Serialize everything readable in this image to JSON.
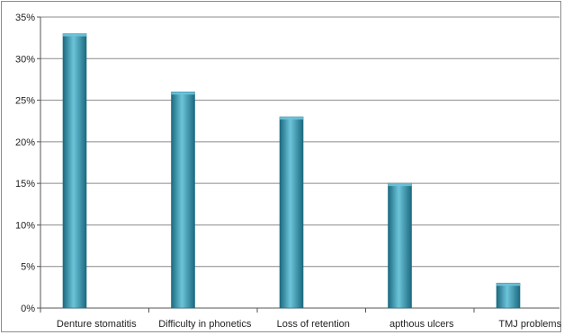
{
  "chart_data": {
    "type": "bar",
    "title": "",
    "xlabel": "",
    "ylabel": "",
    "categories": [
      "Denture stomatitis",
      "Difficulty in phonetics",
      "Loss of retention",
      "apthous ulcers",
      "TMJ problems"
    ],
    "values": [
      33,
      26,
      23,
      15,
      3
    ],
    "ylim": [
      0,
      35
    ],
    "yticks": [
      0,
      5,
      10,
      15,
      20,
      25,
      30,
      35
    ],
    "ytick_labels": [
      "0%",
      "5%",
      "10%",
      "15%",
      "20%",
      "25%",
      "30%",
      "35%"
    ],
    "grid": true,
    "legend": "none",
    "colors": {
      "bar": "#2e93ad",
      "bar_light": "#6cc4d9",
      "bar_dark": "#1c6a80",
      "grid": "#8a8a8a",
      "axis": "#555555"
    }
  }
}
